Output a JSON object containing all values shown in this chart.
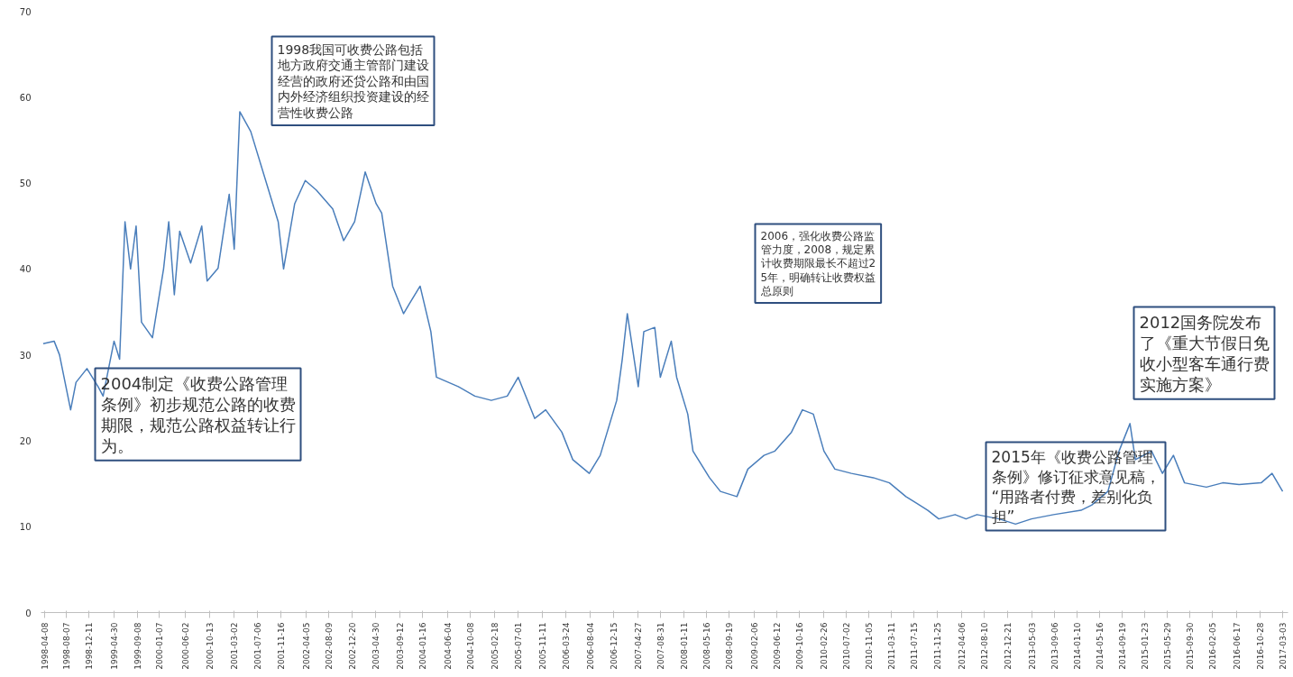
{
  "chart_data": {
    "type": "line",
    "x": [
      "1998-04",
      "1998-06",
      "1998-07",
      "1998-09",
      "1998-10",
      "1998-12",
      "1999-02",
      "1999-03",
      "1999-05",
      "1999-06",
      "1999-07",
      "1999-08",
      "1999-09",
      "1999-10",
      "1999-12",
      "2000-02",
      "2000-03",
      "2000-04",
      "2000-05",
      "2000-07",
      "2000-09",
      "2000-10",
      "2000-12",
      "2001-02",
      "2001-03",
      "2001-04",
      "2001-06",
      "2001-09",
      "2001-11",
      "2001-12",
      "2002-02",
      "2002-04",
      "2002-06",
      "2002-09",
      "2002-11",
      "2003-01",
      "2003-03",
      "2003-05",
      "2003-06",
      "2003-08",
      "2003-10",
      "2003-11",
      "2004-01",
      "2004-03",
      "2004-04",
      "2004-08",
      "2004-11",
      "2005-02",
      "2005-05",
      "2005-07",
      "2005-10",
      "2005-12",
      "2006-03",
      "2006-05",
      "2006-08",
      "2006-10",
      "2007-01",
      "2007-02",
      "2007-03",
      "2007-05",
      "2007-06",
      "2007-08",
      "2007-09",
      "2007-11",
      "2007-12",
      "2008-02",
      "2008-03",
      "2008-06",
      "2008-08",
      "2008-11",
      "2009-01",
      "2009-04",
      "2009-06",
      "2009-09",
      "2009-11",
      "2010-01",
      "2010-03",
      "2010-05",
      "2010-08",
      "2010-12",
      "2011-03",
      "2011-06",
      "2011-10",
      "2011-12",
      "2012-03",
      "2012-05",
      "2012-07",
      "2012-11",
      "2013-02",
      "2013-05",
      "2013-09",
      "2014-02",
      "2014-04",
      "2014-07",
      "2014-09",
      "2014-11",
      "2014-12",
      "2015-03",
      "2015-05",
      "2015-07",
      "2015-09",
      "2016-01",
      "2016-04",
      "2016-07",
      "2016-11",
      "2017-01",
      "2017-03"
    ],
    "series": [
      {
        "color": "#4a7ebb",
        "values": [
          31.3,
          31.6,
          30,
          23.6,
          26.8,
          28.4,
          26.3,
          25.2,
          31.6,
          29.5,
          45.5,
          40,
          45,
          33.8,
          32,
          40,
          45.5,
          37,
          44.4,
          40.7,
          45,
          38.6,
          40.1,
          48.7,
          42.3,
          58.3,
          56,
          49.7,
          45.5,
          40,
          47.6,
          50.3,
          49.2,
          47,
          43.3,
          45.5,
          51.3,
          47.6,
          46.5,
          38,
          34.8,
          35.9,
          38,
          32.7,
          27.4,
          26.3,
          25.2,
          24.7,
          25.2,
          27.4,
          22.6,
          23.6,
          21,
          17.8,
          16.2,
          18.3,
          24.7,
          29.5,
          34.8,
          26.3,
          32.7,
          33.2,
          27.4,
          31.6,
          27.4,
          23.1,
          18.8,
          15.7,
          14.1,
          13.5,
          16.7,
          18.3,
          18.8,
          21,
          23.6,
          23.1,
          18.8,
          16.7,
          16.2,
          15.7,
          15.1,
          13.5,
          11.9,
          10.9,
          11.4,
          10.9,
          11.4,
          10.9,
          10.3,
          10.9,
          11.4,
          11.9,
          12.5,
          14.1,
          18.8,
          22,
          17.8,
          18.8,
          16.2,
          18.3,
          15.1,
          14.6,
          15.1,
          14.9,
          15.1,
          16.2,
          14.1
        ]
      }
    ],
    "ylim": [
      0,
      70
    ],
    "yticks": [
      0,
      10,
      20,
      30,
      40,
      50,
      60,
      70
    ],
    "xlim": [
      "1998-03-20",
      "2017-03-31"
    ],
    "xticks": [
      "1998-04-08",
      "1998-08-07",
      "1998-12-11",
      "1999-04-30",
      "1999-09-08",
      "2000-01-07",
      "2000-06-02",
      "2000-10-13",
      "2001-03-02",
      "2001-07-06",
      "2001-11-16",
      "2002-04-05",
      "2002-08-09",
      "2002-12-20",
      "2003-04-30",
      "2003-09-12",
      "2004-01-16",
      "2004-06-04",
      "2004-10-08",
      "2005-02-18",
      "2005-07-01",
      "2005-11-11",
      "2006-03-24",
      "2006-08-04",
      "2006-12-15",
      "2007-04-27",
      "2007-08-31",
      "2008-01-11",
      "2008-05-16",
      "2008-09-19",
      "2009-02-06",
      "2009-06-12",
      "2009-10-16",
      "2010-02-26",
      "2010-07-02",
      "2010-11-05",
      "2011-03-11",
      "2011-07-15",
      "2011-11-25",
      "2012-04-06",
      "2012-08-10",
      "2012-12-21",
      "2013-05-03",
      "2013-09-06",
      "2014-01-10",
      "2014-05-16",
      "2014-09-19",
      "2015-01-23",
      "2015-05-29",
      "2015-09-30",
      "2016-02-05",
      "2016-06-17",
      "2016-10-28",
      "2017-03-03"
    ],
    "grid": false,
    "annotations": [
      "1998我国可收费公路包括地方政府交通主管部门建设经营的政府还贷公路和由国内外经济组织投资建设的经营性收费公路",
      "2006，强化收费公路监管力度，2008，规定累计收费期限最长不超过25年，明确转让收费权益总原则",
      "2012国务院发布了《重大节假日免收小型客车通行费实施方案》",
      "2004制定《收费公路管理条例》初步规范公路的收费期限，规范公路权益转让行为。",
      "2015年《收费公路管理条例》修订征求意见稿，“用路者付费，差别化负担”"
    ]
  }
}
